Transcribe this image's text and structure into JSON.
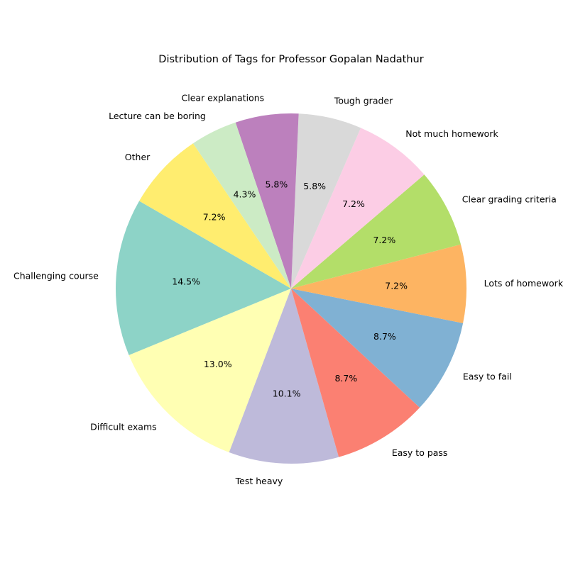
{
  "chart_data": {
    "type": "pie",
    "title": "Distribution of Tags for Professor Gopalan Nadathur",
    "start_angle_deg": 150,
    "direction": "counterclockwise",
    "slices": [
      {
        "label": "Challenging course",
        "value": 14.5,
        "pct_label": "14.5%",
        "color": "#8dd3c7"
      },
      {
        "label": "Difficult exams",
        "value": 13.0,
        "pct_label": "13.0%",
        "color": "#ffffb3"
      },
      {
        "label": "Test heavy",
        "value": 10.1,
        "pct_label": "10.1%",
        "color": "#bebada"
      },
      {
        "label": "Easy to pass",
        "value": 8.7,
        "pct_label": "8.7%",
        "color": "#fb8072"
      },
      {
        "label": "Easy to fail",
        "value": 8.7,
        "pct_label": "8.7%",
        "color": "#80b1d3"
      },
      {
        "label": "Lots of homework",
        "value": 7.2,
        "pct_label": "7.2%",
        "color": "#fdb462"
      },
      {
        "label": "Clear grading criteria",
        "value": 7.2,
        "pct_label": "7.2%",
        "color": "#b3de69"
      },
      {
        "label": "Not much homework",
        "value": 7.2,
        "pct_label": "7.2%",
        "color": "#fccde5"
      },
      {
        "label": "Tough grader",
        "value": 5.8,
        "pct_label": "5.8%",
        "color": "#d9d9d9"
      },
      {
        "label": "Clear explanations",
        "value": 5.8,
        "pct_label": "5.8%",
        "color": "#bc80bd"
      },
      {
        "label": "Lecture can be boring",
        "value": 4.3,
        "pct_label": "4.3%",
        "color": "#ccebc5"
      },
      {
        "label": "Other",
        "value": 7.2,
        "pct_label": "7.2%",
        "color": "#ffed6f"
      }
    ]
  }
}
